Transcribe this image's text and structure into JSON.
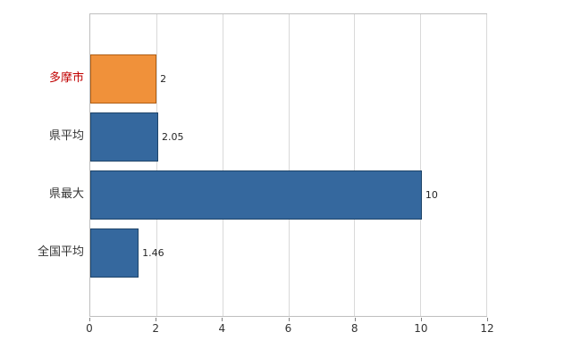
{
  "chart_data": {
    "type": "bar",
    "orientation": "horizontal",
    "title": "",
    "xlabel": "",
    "ylabel": "",
    "categories": [
      "多摩市",
      "県平均",
      "県最大",
      "全国平均"
    ],
    "values": [
      2,
      2.05,
      10,
      1.46
    ],
    "value_labels": [
      "2",
      "2.05",
      "10",
      "1.46"
    ],
    "bar_colors": [
      "#F0913A",
      "#35689E",
      "#35689E",
      "#35689E"
    ],
    "bar_border_colors": [
      "#AF5E14",
      "#1E4469",
      "#1E4469",
      "#1E4469"
    ],
    "label_colors": [
      "#C00000",
      "#333333",
      "#333333",
      "#333333"
    ],
    "xlim": [
      0,
      12
    ],
    "x_ticks": [
      "0",
      "2",
      "4",
      "6",
      "8",
      "10",
      "12"
    ],
    "grid": "vertical",
    "legend": "none"
  },
  "colors": {
    "background": "#ffffff",
    "plot_border": "#bfbfbf",
    "gridline": "#d9d9d9",
    "tick": "#808080",
    "tick_label": "#333333",
    "value_label": "#262626"
  }
}
